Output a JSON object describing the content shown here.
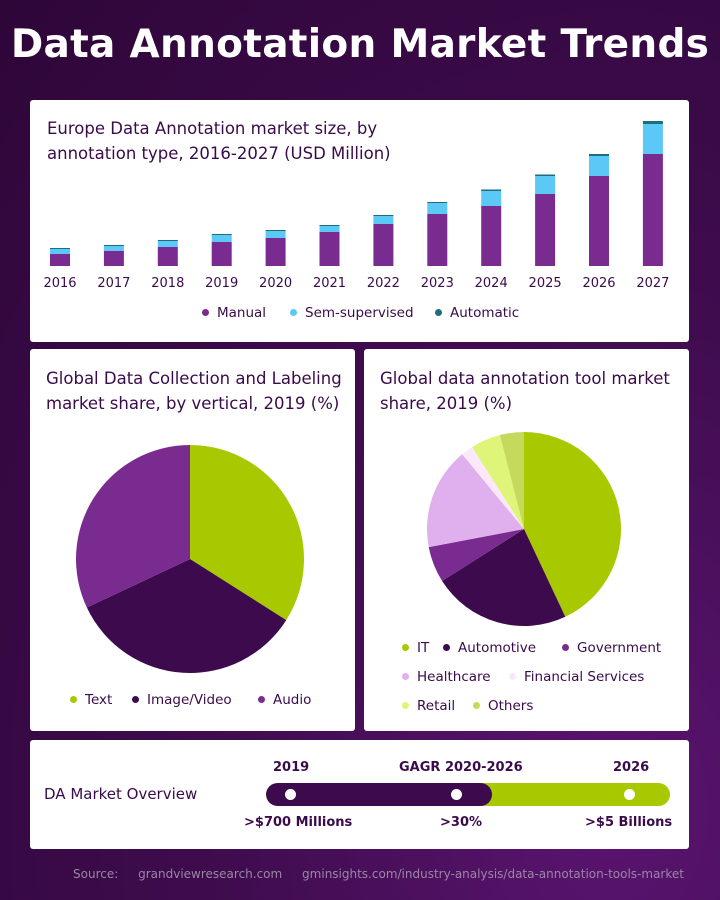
{
  "title": "Data Annotation Market Trends",
  "colors": {
    "manual": "#7a2b8f",
    "semi": "#5bc8f5",
    "automatic": "#1c6e7e",
    "dark_purple": "#3d0a4e",
    "lime": "#a8c800"
  },
  "bar_card": {
    "title": "Europe Data Annotation market size, by annotation type, 2016-2027 (USD Million)",
    "legend": [
      "Manual",
      "Sem-supervised",
      "Automatic"
    ]
  },
  "pie1_card": {
    "title": "Global Data Collection and Labeling market share, by vertical, 2019 (%)",
    "legend": [
      "Text",
      "Image/Video",
      "Audio"
    ]
  },
  "pie2_card": {
    "title": "Global data annotation tool market share, 2019 (%)",
    "legend": [
      "IT",
      "Automotive",
      "Government",
      "Healthcare",
      "Financial Services",
      "Retail",
      "Others"
    ]
  },
  "overview": {
    "label": "DA Market Overview",
    "years": [
      "2019",
      "GAGR 2020-2026",
      "2026"
    ],
    "values": [
      ">$700 Millions",
      ">30%",
      ">$5 Billions"
    ],
    "progress": 0.56
  },
  "source": {
    "label": "Source:",
    "links": [
      "grandviewresearch.com",
      "gminsights.com/industry-analysis/data-annotation-tools-market"
    ]
  },
  "chart_data": [
    {
      "type": "bar",
      "stacked": true,
      "title": "Europe Data Annotation market size, by annotation type, 2016-2027 (USD Million)",
      "categories": [
        "2016",
        "2017",
        "2018",
        "2019",
        "2020",
        "2021",
        "2022",
        "2023",
        "2024",
        "2025",
        "2026",
        "2027"
      ],
      "series": [
        {
          "name": "Manual",
          "color": "#7a2b8f",
          "values": [
            12,
            15,
            19,
            24,
            28,
            34,
            42,
            52,
            60,
            72,
            90,
            112
          ]
        },
        {
          "name": "Sem-supervised",
          "color": "#5bc8f5",
          "values": [
            5,
            5,
            6,
            7,
            7,
            6,
            8,
            11,
            15,
            18,
            20,
            30
          ]
        },
        {
          "name": "Automatic",
          "color": "#1c6e7e",
          "values": [
            1,
            1,
            1,
            1,
            1,
            1,
            1,
            1,
            1.5,
            1.5,
            2,
            3
          ]
        }
      ],
      "ylim": [
        0,
        150
      ],
      "grid": false,
      "legend_position": "bottom"
    },
    {
      "type": "pie",
      "title": "Global Data Collection and Labeling market share, by vertical, 2019 (%)",
      "labels": [
        "Text",
        "Image/Video",
        "Audio"
      ],
      "values": [
        34,
        34,
        32
      ],
      "colors": [
        "#a8c800",
        "#3d0a4e",
        "#7a2b8f"
      ],
      "legend_position": "bottom"
    },
    {
      "type": "pie",
      "title": "Global data annotation tool market share, 2019 (%)",
      "labels": [
        "IT",
        "Automotive",
        "Government",
        "Healthcare",
        "Financial Services",
        "Retail",
        "Others"
      ],
      "values": [
        43,
        23,
        6,
        17,
        2,
        5,
        4
      ],
      "colors": [
        "#a8c800",
        "#3d0a4e",
        "#7a2b8f",
        "#e0b0ee",
        "#fbe9fb",
        "#dff57a",
        "#c5da5c"
      ],
      "legend_position": "bottom"
    }
  ]
}
